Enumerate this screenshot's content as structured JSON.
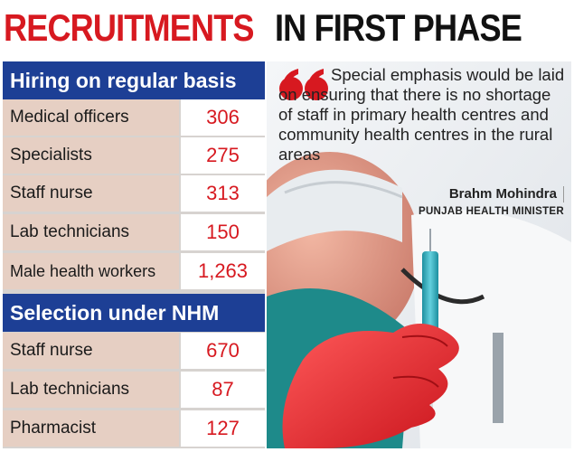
{
  "headline": {
    "part1": "RECRUITMENTS",
    "part2": "IN FIRST PHASE"
  },
  "sections": [
    {
      "title": "Hiring on regular basis",
      "rows": [
        {
          "label": "Medical officers",
          "value": "306"
        },
        {
          "label": "Specialists",
          "value": "275"
        },
        {
          "label": "Staff nurse",
          "value": "313"
        },
        {
          "label": "Lab technicians",
          "value": "150"
        },
        {
          "label": "Male health workers",
          "value": "1,263"
        }
      ]
    },
    {
      "title": "Selection under NHM",
      "rows": [
        {
          "label": "Staff nurse",
          "value": "670"
        },
        {
          "label": "Lab technicians",
          "value": "87"
        },
        {
          "label": "Pharmacist",
          "value": "127"
        }
      ]
    }
  ],
  "quote": {
    "text": "Special emphasis would be laid on ensuring that there is no shortage of staff in primary health centres and community health centres in the rural areas",
    "author": "Brahm Mohindra",
    "role": "PUNJAB HEALTH MINISTER"
  },
  "colors": {
    "red": "#d71920",
    "blue": "#1d3f95",
    "label_bg": "#e6cfc3"
  },
  "icons": {
    "quote": "quote-mark-icon",
    "photo": "syringe-hand-photo"
  }
}
